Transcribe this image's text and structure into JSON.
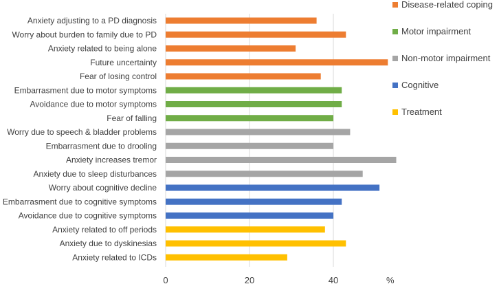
{
  "chart_data": {
    "type": "bar",
    "orientation": "horizontal",
    "title": "",
    "xlabel": "%",
    "ylabel": "",
    "xlim": [
      0,
      60
    ],
    "xticks": [
      0,
      20,
      40
    ],
    "grid": true,
    "legend_position": "right",
    "groups": [
      {
        "name": "Disease-related coping",
        "color": "#ED7D31"
      },
      {
        "name": "Motor impairment",
        "color": "#70AD47"
      },
      {
        "name": "Non-motor impairment",
        "color": "#A5A5A5"
      },
      {
        "name": "Cognitive",
        "color": "#4472C4"
      },
      {
        "name": "Treatment",
        "color": "#FFC000"
      }
    ],
    "categories": [
      "Anxiety adjusting to a PD diagnosis",
      "Worry about burden to family due to PD",
      "Anxiety related to being alone",
      "Future uncertainty",
      "Fear of losing control",
      "Embarrasment due to motor symptoms",
      "Avoidance due to motor symptoms",
      "Fear of falling",
      "Worry due to speech & bladder problems",
      "Embarrasment due to drooling",
      "Anxiety increases tremor",
      "Anxiety due to sleep disturbances",
      "Worry about cognitive decline",
      "Embarrasment due to cognitive symptoms",
      "Avoidance due to cognitive symptoms",
      "Anxiety related to off periods",
      "Anxiety due to dyskinesias",
      "Anxiety related to ICDs"
    ],
    "values": [
      36,
      43,
      31,
      53,
      37,
      42,
      42,
      40,
      44,
      40,
      55,
      47,
      51,
      42,
      40,
      38,
      43,
      29
    ],
    "category_group": [
      0,
      0,
      0,
      0,
      0,
      1,
      1,
      1,
      2,
      2,
      2,
      2,
      3,
      3,
      3,
      4,
      4,
      4
    ]
  }
}
